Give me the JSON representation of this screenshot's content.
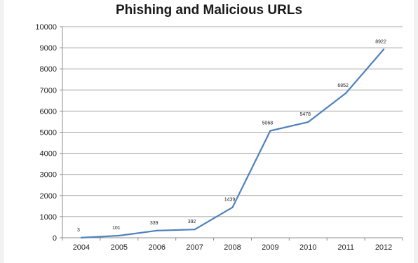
{
  "chart_data": {
    "type": "line",
    "title": "Phishing and Malicious URLs",
    "xlabel": "",
    "ylabel": "",
    "categories": [
      "2004",
      "2005",
      "2006",
      "2007",
      "2008",
      "2009",
      "2010",
      "2011",
      "2012"
    ],
    "series": [
      {
        "values": [
          3,
          101,
          339,
          392,
          1439,
          5068,
          5478,
          6852,
          8922
        ],
        "color": "#4f81bd"
      }
    ],
    "data_labels": [
      "3",
      "101",
      "339",
      "392",
      "1439",
      "5068",
      "5478",
      "6852",
      "8922"
    ],
    "yticks": [
      "0",
      "1000",
      "2000",
      "3000",
      "4000",
      "5000",
      "6000",
      "7000",
      "8000",
      "9000",
      "10000"
    ],
    "ylim": [
      0,
      10000
    ],
    "grid": true,
    "legend": "none",
    "gridline_color": "#a6a6a6"
  }
}
